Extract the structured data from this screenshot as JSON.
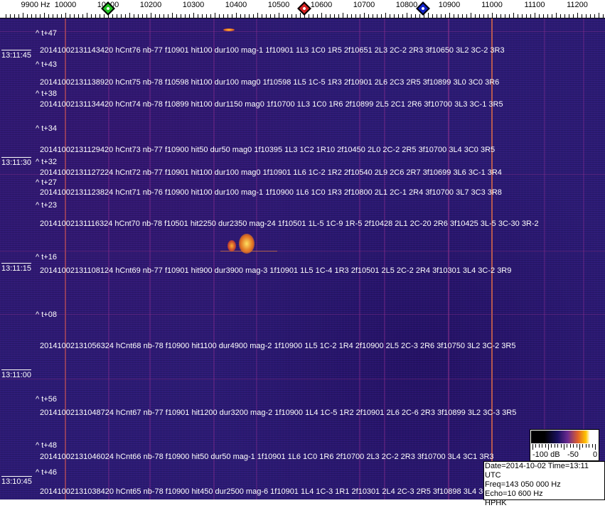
{
  "ruler": {
    "unit_label": "9900 Hz",
    "freq_labels": [
      10000,
      10100,
      10200,
      10300,
      10400,
      10500,
      10600,
      10700,
      10800,
      10900,
      11000,
      11100,
      11200
    ],
    "markers": [
      {
        "name": "green-marker",
        "freq_hz": 10100,
        "color": "#22c322"
      },
      {
        "name": "red-marker",
        "freq_hz": 10560,
        "color": "#d42020"
      },
      {
        "name": "blue-marker",
        "freq_hz": 10838,
        "color": "#1020c8"
      }
    ]
  },
  "colors": {
    "background": "#2d1c78",
    "text": "#ffffff",
    "line_highlight": "#e07040"
  },
  "time_stamps": [
    "13:11:45",
    "13:11:30",
    "13:11:15",
    "13:11:00",
    "13:10:45"
  ],
  "t_marks": [
    "^ t+47",
    "^ t+43",
    "^ t+38",
    "^ t+34",
    "^ t+32",
    "^ t+27",
    "^ t+23",
    "^ t+16",
    "^ t+08",
    "^ t+56",
    "^ t+48",
    "^ t+46"
  ],
  "detections": [
    "20141002131143420 hCnt76 nb-77 f10901 hit100 dur100 mag-1 1f10901 1L3 1C0 1R5 2f10651 2L3 2C-2 2R3 3f10650 3L2 3C-2 3R3",
    "20141002131138920 hCnt75 nb-78 f10598 hit100 dur100 mag0 1f10598 1L5 1C-5 1R3 2f10901 2L6 2C3 2R5 3f10899 3L0 3C0 3R6",
    "20141002131134420 hCnt74 nb-78 f10899 hit100 dur1150 mag0 1f10700 1L3 1C0 1R6 2f10899 2L5 2C1 2R6 3f10700 3L3 3C-1 3R5",
    "20141002131129420 hCnt73 nb-77 f10900 hit50 dur50 mag0 1f10395 1L3 1C2 1R10 2f10450 2L0 2C-2 2R5 3f10700 3L4 3C0 3R5",
    "20141002131127224 hCnt72 nb-77 f10901 hit100 dur100 mag0 1f10901 1L6 1C-2 1R2 2f10540 2L9 2C6 2R7 3f10699 3L6 3C-1 3R4",
    "20141002131123824 hCnt71 nb-76 f10900 hit100 dur100 mag-1 1f10900 1L6 1C0 1R3 2f10800 2L1 2C-1 2R4 3f10700 3L7 3C3 3R8",
    "20141002131116324 hCnt70 nb-78 f10501 hit2250 dur2350 mag-24 1f10501 1L-5 1C-9 1R-5 2f10428 2L1 2C-20 2R6 3f10425 3L-5 3C-30 3R-2",
    "20141002131108124 hCnt69 nb-77 f10901 hit900 dur3900 mag-3 1f10901 1L5 1C-4 1R3 2f10501 2L5 2C-2 2R4 3f10301 3L4 3C-2 3R9",
    "20141002131056324 hCnt68 nb-78 f10900 hit1100 dur4900 mag-2 1f10900 1L5 1C-2 1R4 2f10900 2L5 2C-3 2R6 3f10750 3L2 3C-2 3R5",
    "20141002131048724 hCnt67 nb-77 f10901 hit1200 dur3200 mag-2 1f10900 1L4 1C-5 1R2 2f10901 2L6 2C-6 2R3 3f10899 3L2 3C-3 3R5",
    "20141002131046024 hCnt66 nb-78 f10900 hit50 dur50 mag-1 1f10901 1L6 1C0 1R6 2f10700 2L3 2C-2 2R3 3f10700 3L4 3C1 3R3",
    "20141002131038420 hCnt65 nb-78 f10900 hit450 dur2500 mag-6 1f10901 1L4 1C-3 1R1 2f10301 2L4 2C-3 2R5 3f10898 3L4 3C-3R5"
  ],
  "colorbar": {
    "labels": [
      "-100 dB",
      "-50",
      "0"
    ]
  },
  "info": {
    "date_time": "Date=2014-10-02 Time=13:11 UTC",
    "freq": "Freq=143 050 000 Hz",
    "echo": "Echo=10 600 Hz",
    "station": "HPHK"
  }
}
